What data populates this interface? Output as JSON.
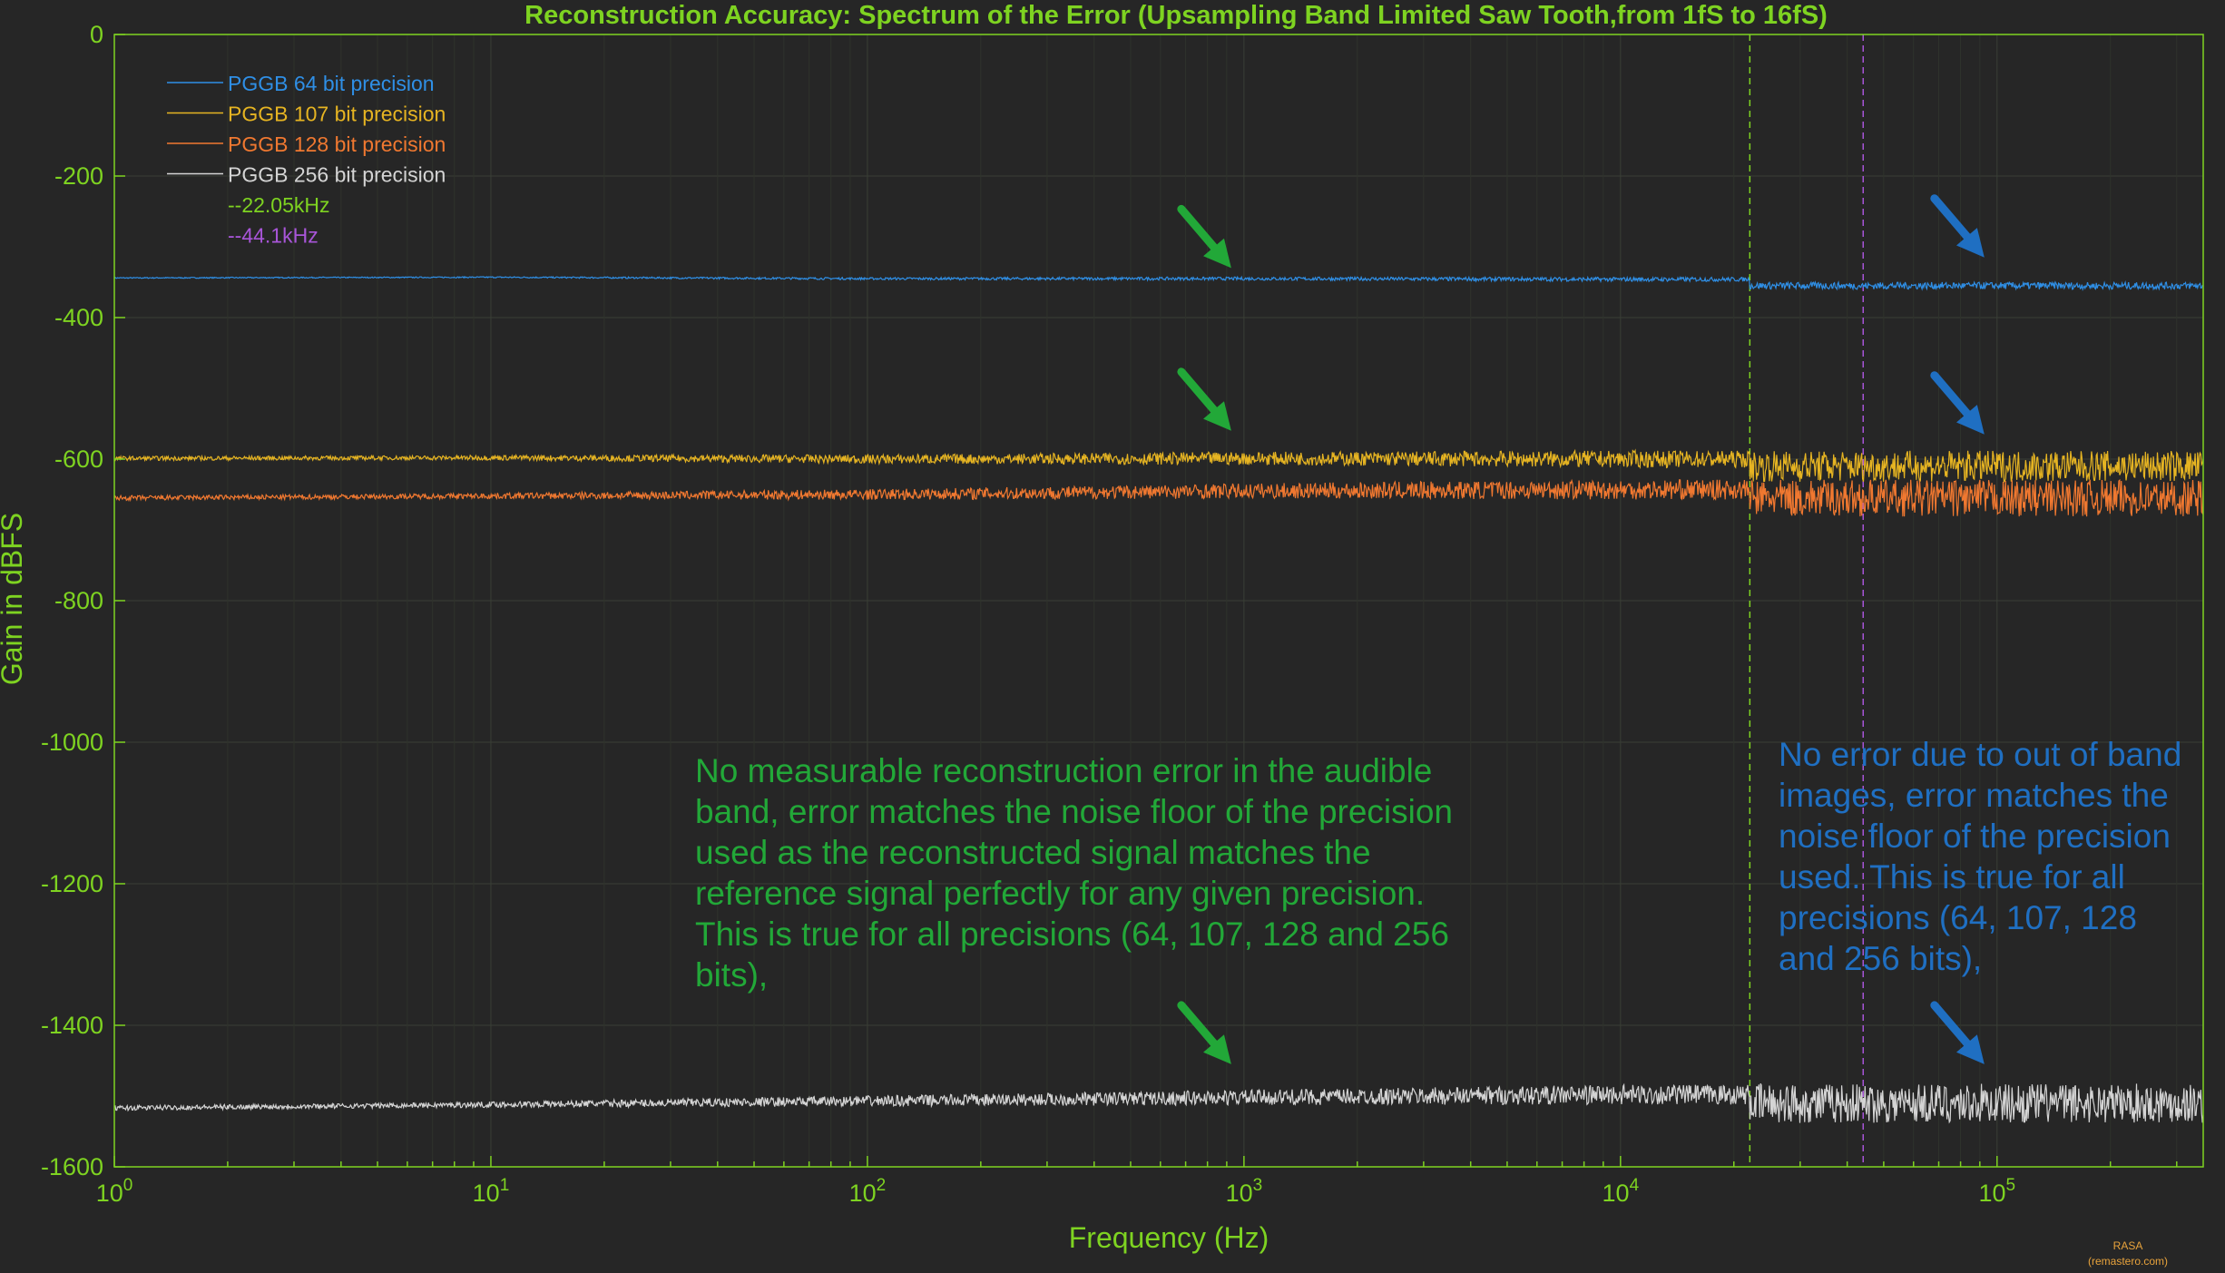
{
  "chart_data": {
    "type": "line",
    "title": "Reconstruction Accuracy: Spectrum of the Error (Upsampling Band Limited Saw Tooth,from 1fS to 16fS)",
    "xlabel": "Frequency (Hz)",
    "ylabel": "Gain in dBFS",
    "x_scale": "log",
    "xlim": [
      1,
      352800
    ],
    "ylim": [
      -1600,
      0
    ],
    "x_ticks": [
      {
        "value": 1,
        "base": "10",
        "exp": "0"
      },
      {
        "value": 10,
        "base": "10",
        "exp": "1"
      },
      {
        "value": 100,
        "base": "10",
        "exp": "2"
      },
      {
        "value": 1000,
        "base": "10",
        "exp": "3"
      },
      {
        "value": 10000,
        "base": "10",
        "exp": "4"
      },
      {
        "value": 100000,
        "base": "10",
        "exp": "5"
      }
    ],
    "y_ticks": [
      0,
      -200,
      -400,
      -600,
      -800,
      -1000,
      -1200,
      -1400,
      -1600
    ],
    "y_tick_labels": [
      "0",
      "-200",
      "-400",
      "-600",
      "-800",
      "-1000",
      "-1200",
      "-1400",
      "-1600"
    ],
    "grid": true,
    "legend_position": "top-left",
    "series": [
      {
        "name": "PGGB 64 bit precision",
        "color": "#2f8fe6",
        "points": [
          [
            1,
            -344
          ],
          [
            10,
            -343
          ],
          [
            100,
            -345
          ],
          [
            1000,
            -345
          ],
          [
            10000,
            -346
          ],
          [
            22050,
            -346
          ],
          [
            22050,
            -355
          ],
          [
            352800,
            -355
          ]
        ],
        "noise_low": 3,
        "noise_high": 5
      },
      {
        "name": "PGGB 107 bit precision",
        "color": "#e6b422",
        "points": [
          [
            1,
            -599
          ],
          [
            10,
            -598
          ],
          [
            100,
            -600
          ],
          [
            1000,
            -599
          ],
          [
            10000,
            -600
          ],
          [
            22050,
            -600
          ],
          [
            22050,
            -610
          ],
          [
            352800,
            -610
          ]
        ],
        "noise_low": 12,
        "noise_high": 22
      },
      {
        "name": "PGGB 128 bit precision",
        "color": "#f07830",
        "points": [
          [
            1,
            -655
          ],
          [
            10,
            -652
          ],
          [
            100,
            -650
          ],
          [
            1000,
            -645
          ],
          [
            10000,
            -643
          ],
          [
            22050,
            -643
          ],
          [
            22050,
            -655
          ],
          [
            352800,
            -655
          ]
        ],
        "noise_low": 14,
        "noise_high": 26
      },
      {
        "name": "PGGB 256 bit precision",
        "color": "#d4d4d4",
        "points": [
          [
            1,
            -1517
          ],
          [
            10,
            -1512
          ],
          [
            100,
            -1507
          ],
          [
            1000,
            -1502
          ],
          [
            10000,
            -1498
          ],
          [
            22050,
            -1498
          ],
          [
            22050,
            -1510
          ],
          [
            352800,
            -1510
          ]
        ],
        "noise_low": 14,
        "noise_high": 28
      }
    ],
    "vlines": [
      {
        "name": "--22.05kHz",
        "x": 22050,
        "color": "#7ed321"
      },
      {
        "name": "--44.1kHz",
        "x": 44100,
        "color": "#a855d8"
      }
    ],
    "annotations": [
      {
        "text": "No measurable reconstruction error in the audible band, error matches the noise floor of the precision used as the reconstructed signal matches the reference signal perfectly for any given precision. This is true for all precisions (64, 107, 128 and 256 bits),",
        "lines": [
          "No measurable reconstruction error in the audible",
          "band, error matches the noise floor of the precision",
          "used as the reconstructed signal matches the",
          "reference signal perfectly for any given precision.",
          "This is true for all precisions (64, 107, 128 and 256",
          "bits),"
        ],
        "color": "#22a838"
      },
      {
        "text": "No error due to out of band images, error matches the noise floor of the precision used. This is true for all precisions (64, 107, 128 and 256 bits),",
        "lines": [
          "No error due to out of band",
          "images, error matches the",
          "noise floor of the precision",
          "used. This is true for all",
          "precisions (64, 107, 128",
          "and 256 bits),"
        ],
        "color": "#1f6fc2"
      }
    ],
    "arrows": [
      {
        "color": "#22a838",
        "x": 1000,
        "y": -330
      },
      {
        "color": "#22a838",
        "x": 1000,
        "y": -560
      },
      {
        "color": "#22a838",
        "x": 1000,
        "y": -1455
      },
      {
        "color": "#1f6fc2",
        "x": 100000,
        "y": -315
      },
      {
        "color": "#1f6fc2",
        "x": 100000,
        "y": -565
      },
      {
        "color": "#1f6fc2",
        "x": 100000,
        "y": -1455
      }
    ],
    "watermark": {
      "line1": "RASA",
      "line2": "(remastero.com)"
    }
  }
}
